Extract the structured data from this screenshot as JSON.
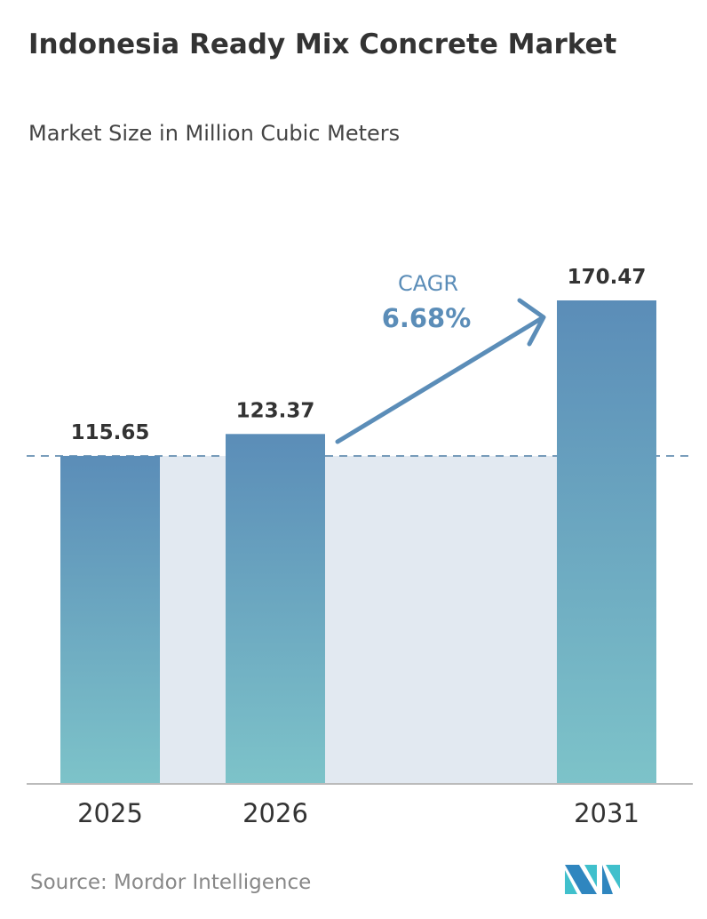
{
  "header": {
    "title": "Indonesia Ready Mix Concrete Market",
    "subtitle": "Market Size in Million Cubic Meters"
  },
  "chart_data": {
    "type": "bar",
    "title": "Indonesia Ready Mix Concrete Market",
    "ylabel": "Market Size in Million Cubic Meters",
    "categories": [
      "2025",
      "2026",
      "2031"
    ],
    "values": [
      115.65,
      123.37,
      170.47
    ],
    "ylim": [
      0,
      170.47
    ],
    "grid": false,
    "annotation": {
      "label": "CAGR",
      "value": "6.68%"
    },
    "colors": {
      "bar_top": "#5b8db8",
      "bar_bottom": "#7dc3c9",
      "band": "#e2e9f1",
      "dash": "#4f7fa6",
      "annotation": "#5b8db8"
    }
  },
  "footer": {
    "source": "Source:  Mordor Intelligence",
    "logo": "Mordor Intelligence"
  }
}
